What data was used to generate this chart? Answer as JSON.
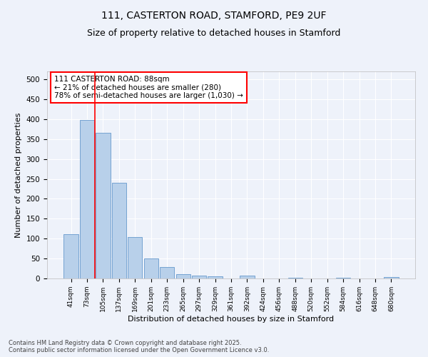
{
  "title_line1": "111, CASTERTON ROAD, STAMFORD, PE9 2UF",
  "title_line2": "Size of property relative to detached houses in Stamford",
  "xlabel": "Distribution of detached houses by size in Stamford",
  "ylabel": "Number of detached properties",
  "categories": [
    "41sqm",
    "73sqm",
    "105sqm",
    "137sqm",
    "169sqm",
    "201sqm",
    "233sqm",
    "265sqm",
    "297sqm",
    "329sqm",
    "361sqm",
    "392sqm",
    "424sqm",
    "456sqm",
    "488sqm",
    "520sqm",
    "552sqm",
    "584sqm",
    "616sqm",
    "648sqm",
    "680sqm"
  ],
  "values": [
    112,
    398,
    365,
    241,
    104,
    51,
    29,
    10,
    8,
    5,
    0,
    7,
    0,
    0,
    1,
    0,
    0,
    1,
    0,
    0,
    3
  ],
  "bar_color": "#b8d0ea",
  "bar_edge_color": "#6699cc",
  "property_line_x": 1.5,
  "property_line_color": "red",
  "annotation_text": "111 CASTERTON ROAD: 88sqm\n← 21% of detached houses are smaller (280)\n78% of semi-detached houses are larger (1,030) →",
  "annotation_box_color": "red",
  "annotation_fontsize": 7.5,
  "ylim": [
    0,
    520
  ],
  "yticks": [
    0,
    50,
    100,
    150,
    200,
    250,
    300,
    350,
    400,
    450,
    500
  ],
  "background_color": "#eef2fa",
  "grid_color": "#ffffff",
  "footer_text": "Contains HM Land Registry data © Crown copyright and database right 2025.\nContains public sector information licensed under the Open Government Licence v3.0.",
  "title_fontsize": 10,
  "subtitle_fontsize": 9,
  "xlabel_fontsize": 8,
  "ylabel_fontsize": 8
}
